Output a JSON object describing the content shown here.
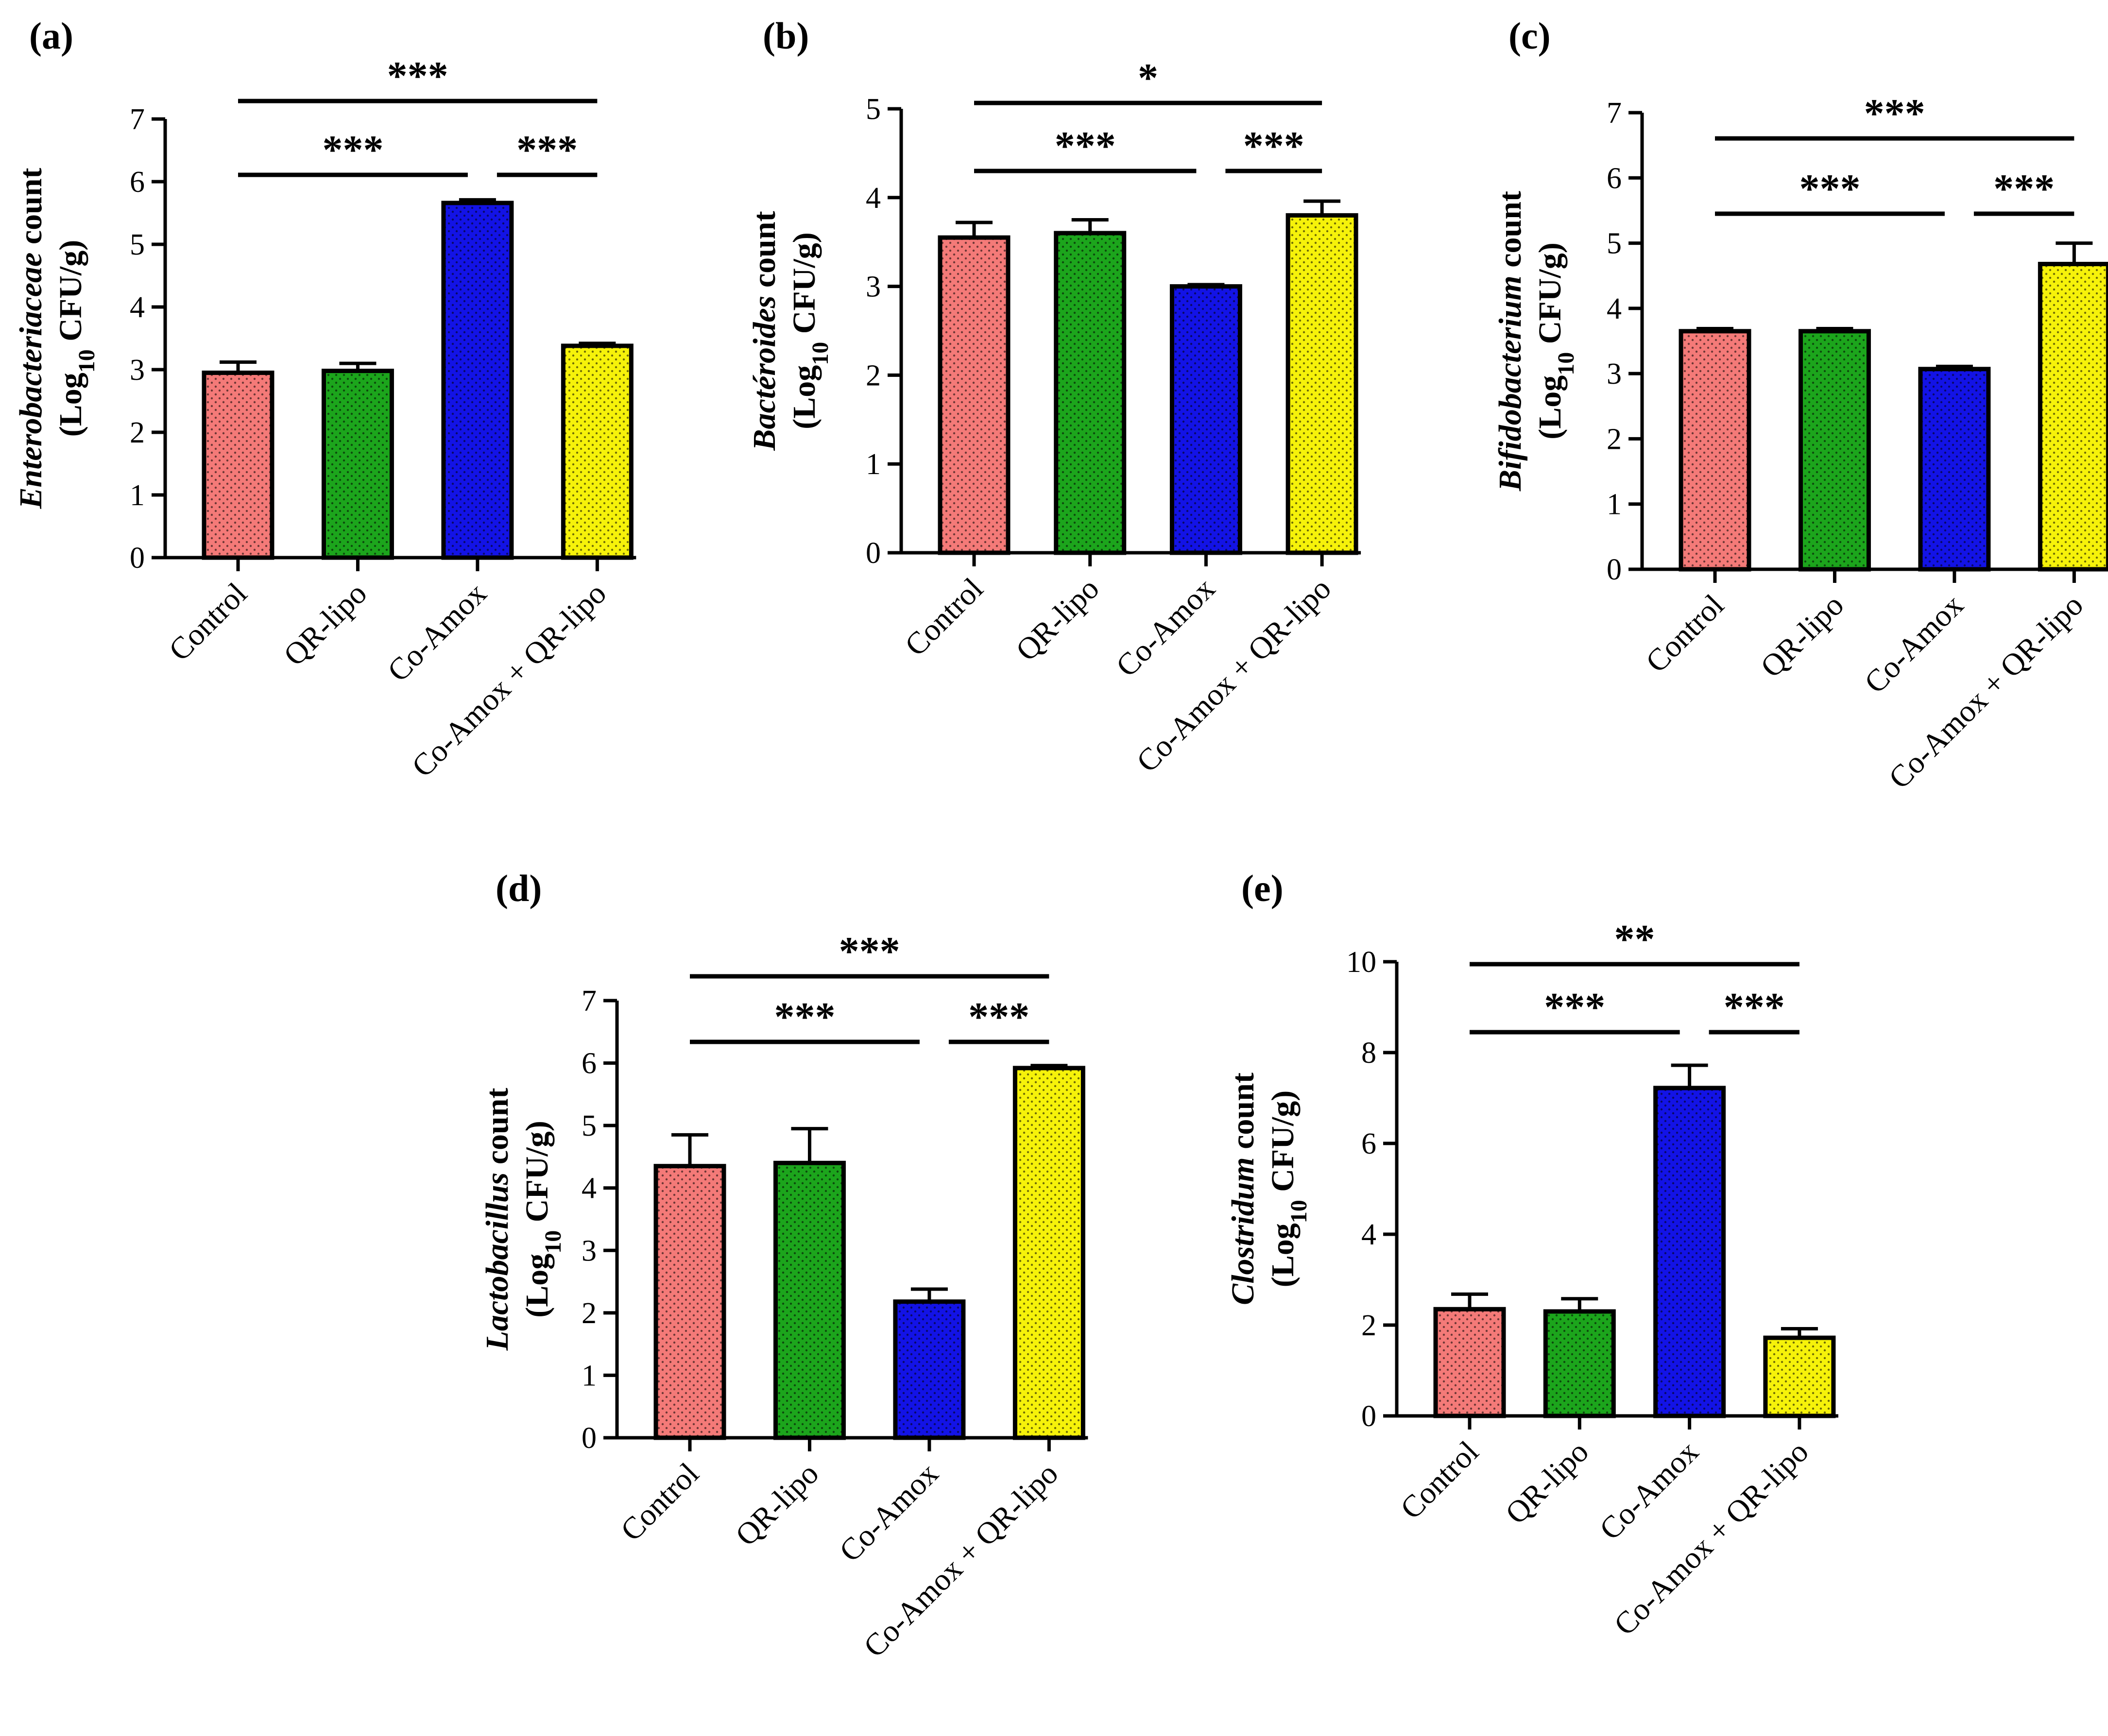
{
  "figure": {
    "group_colors": {
      "Control": "#f47a78",
      "QR-lipo": "#1ca51c",
      "Co-Amox": "#1313e6",
      "Co-Amox + QR-lipo": "#f6f20a"
    }
  },
  "chart_data": [
    {
      "id": "a",
      "type": "bar",
      "panel_label": "(a)",
      "title": "",
      "ylabel_taxon": "Enterobacteriaceae",
      "ylabel_suffix": " count",
      "ylabel_unit_prefix": "(Log",
      "ylabel_unit_sub": "10",
      "ylabel_unit_suffix": " CFU/g)",
      "ylim": [
        0,
        7
      ],
      "yticks": [
        0,
        1,
        2,
        3,
        4,
        5,
        6,
        7
      ],
      "categories": [
        "Control",
        "QR-lipo",
        "Co-Amox",
        "Co-Amox + QR-lipo"
      ],
      "values": [
        2.95,
        2.98,
        5.66,
        3.38
      ],
      "errors": [
        0.17,
        0.12,
        0.05,
        0.04
      ],
      "significance": [
        {
          "from": 0,
          "to": 3,
          "label": "***",
          "level": 2
        },
        {
          "from": 0,
          "to": 2,
          "label": "***",
          "level": 1
        },
        {
          "from": 2,
          "to": 3,
          "label": "***",
          "level": 1
        }
      ]
    },
    {
      "id": "b",
      "type": "bar",
      "panel_label": "(b)",
      "title": "",
      "ylabel_taxon": "Bactéroides",
      "ylabel_suffix": " count",
      "ylabel_unit_prefix": "(Log",
      "ylabel_unit_sub": "10",
      "ylabel_unit_suffix": " CFU/g)",
      "ylim": [
        0,
        5
      ],
      "yticks": [
        0,
        1,
        2,
        3,
        4,
        5
      ],
      "categories": [
        "Control",
        "QR-lipo",
        "Co-Amox",
        "Co-Amox + QR-lipo"
      ],
      "values": [
        3.55,
        3.6,
        3.0,
        3.8
      ],
      "errors": [
        0.17,
        0.15,
        0.02,
        0.16
      ],
      "significance": [
        {
          "from": 0,
          "to": 3,
          "label": "*",
          "level": 2
        },
        {
          "from": 0,
          "to": 2,
          "label": "***",
          "level": 1
        },
        {
          "from": 2,
          "to": 3,
          "label": "***",
          "level": 1
        }
      ]
    },
    {
      "id": "c",
      "type": "bar",
      "panel_label": "(c)",
      "title": "",
      "ylabel_taxon": "Bifidobacterium",
      "ylabel_suffix": " count",
      "ylabel_unit_prefix": "(Log",
      "ylabel_unit_sub": "10",
      "ylabel_unit_suffix": " CFU/g)",
      "ylim": [
        0,
        7
      ],
      "yticks": [
        0,
        1,
        2,
        3,
        4,
        5,
        6,
        7
      ],
      "categories": [
        "Control",
        "QR-lipo",
        "Co-Amox",
        "Co-Amox + QR-lipo"
      ],
      "values": [
        3.65,
        3.65,
        3.07,
        4.68
      ],
      "errors": [
        0.04,
        0.04,
        0.04,
        0.32
      ],
      "significance": [
        {
          "from": 0,
          "to": 3,
          "label": "***",
          "level": 2
        },
        {
          "from": 0,
          "to": 2,
          "label": "***",
          "level": 1
        },
        {
          "from": 2,
          "to": 3,
          "label": "***",
          "level": 1
        }
      ]
    },
    {
      "id": "d",
      "type": "bar",
      "panel_label": "(d)",
      "title": "",
      "ylabel_taxon": "Lactobacillus",
      "ylabel_suffix": " count",
      "ylabel_unit_prefix": "(Log",
      "ylabel_unit_sub": "10",
      "ylabel_unit_suffix": " CFU/g)",
      "ylim": [
        0,
        7
      ],
      "yticks": [
        0,
        1,
        2,
        3,
        4,
        5,
        6,
        7
      ],
      "categories": [
        "Control",
        "QR-lipo",
        "Co-Amox",
        "Co-Amox + QR-lipo"
      ],
      "values": [
        4.35,
        4.4,
        2.18,
        5.92
      ],
      "errors": [
        0.5,
        0.55,
        0.2,
        0.04
      ],
      "significance": [
        {
          "from": 0,
          "to": 3,
          "label": "***",
          "level": 2
        },
        {
          "from": 0,
          "to": 2,
          "label": "***",
          "level": 1
        },
        {
          "from": 2,
          "to": 3,
          "label": "***",
          "level": 1
        }
      ]
    },
    {
      "id": "e",
      "type": "bar",
      "panel_label": "(e)",
      "title": "",
      "ylabel_taxon": "Clostridum",
      "ylabel_suffix": " count",
      "ylabel_unit_prefix": "(Log",
      "ylabel_unit_sub": "10",
      "ylabel_unit_suffix": " CFU/g)",
      "ylim": [
        0,
        10
      ],
      "yticks": [
        0,
        2,
        4,
        6,
        8,
        10
      ],
      "categories": [
        "Control",
        "QR-lipo",
        "Co-Amox",
        "Co-Amox + QR-lipo"
      ],
      "values": [
        2.35,
        2.3,
        7.22,
        1.72
      ],
      "errors": [
        0.33,
        0.28,
        0.5,
        0.2
      ],
      "significance": [
        {
          "from": 0,
          "to": 3,
          "label": "**",
          "level": 2
        },
        {
          "from": 0,
          "to": 2,
          "label": "***",
          "level": 1
        },
        {
          "from": 2,
          "to": 3,
          "label": "***",
          "level": 1
        }
      ]
    }
  ]
}
